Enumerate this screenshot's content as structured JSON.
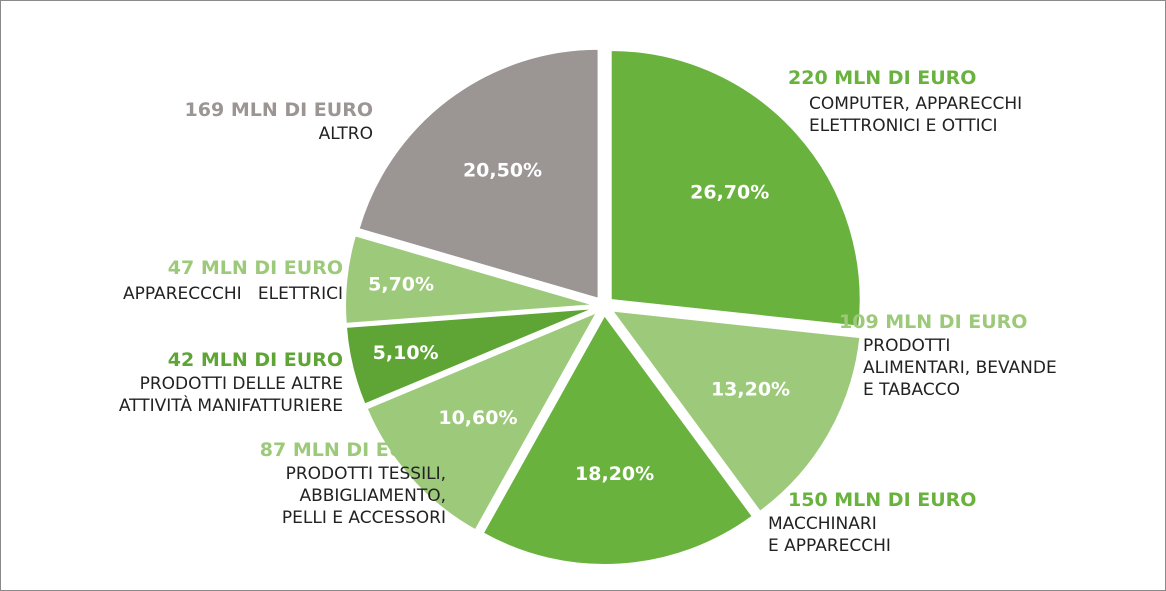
{
  "chart_data": {
    "type": "pie",
    "categories": [
      "COMPUTER, APPARECCHI\nELETTRONICI E OTTICI",
      "PRODOTTI\nALIMENTARI, BEVANDE\nE TABACCO",
      "MACCHINARI\nE APPARECCHI",
      "PRODOTTI TESSILI,\nABBIGLIAMENTO,\n PELLI E ACCESSORI",
      "PRODOTTI DELLE ALTRE\nATTIVITÀ MANIFATTURIERE",
      "APPARECCCHI   ELETTRICI",
      "ALTRO"
    ],
    "values": [
      26.7,
      13.2,
      18.2,
      10.6,
      5.1,
      5.7,
      20.5
    ],
    "value_labels": [
      "26,70%",
      "13,20%",
      "18,20%",
      "10,60%",
      "5,10%",
      "5,70%",
      "20,50%"
    ],
    "amounts": [
      "220 MLN DI EURO",
      "109 MLN DI EURO",
      "150 MLN DI EURO",
      "87 MLN DI EURO",
      "42 MLN DI EURO",
      "47 MLN DI EURO",
      "169 MLN DI EURO"
    ],
    "colors": [
      "#6ab23e",
      "#9dc97a",
      "#6ab23e",
      "#9dc97a",
      "#5ea535",
      "#9dc97a",
      "#9b9593"
    ]
  }
}
